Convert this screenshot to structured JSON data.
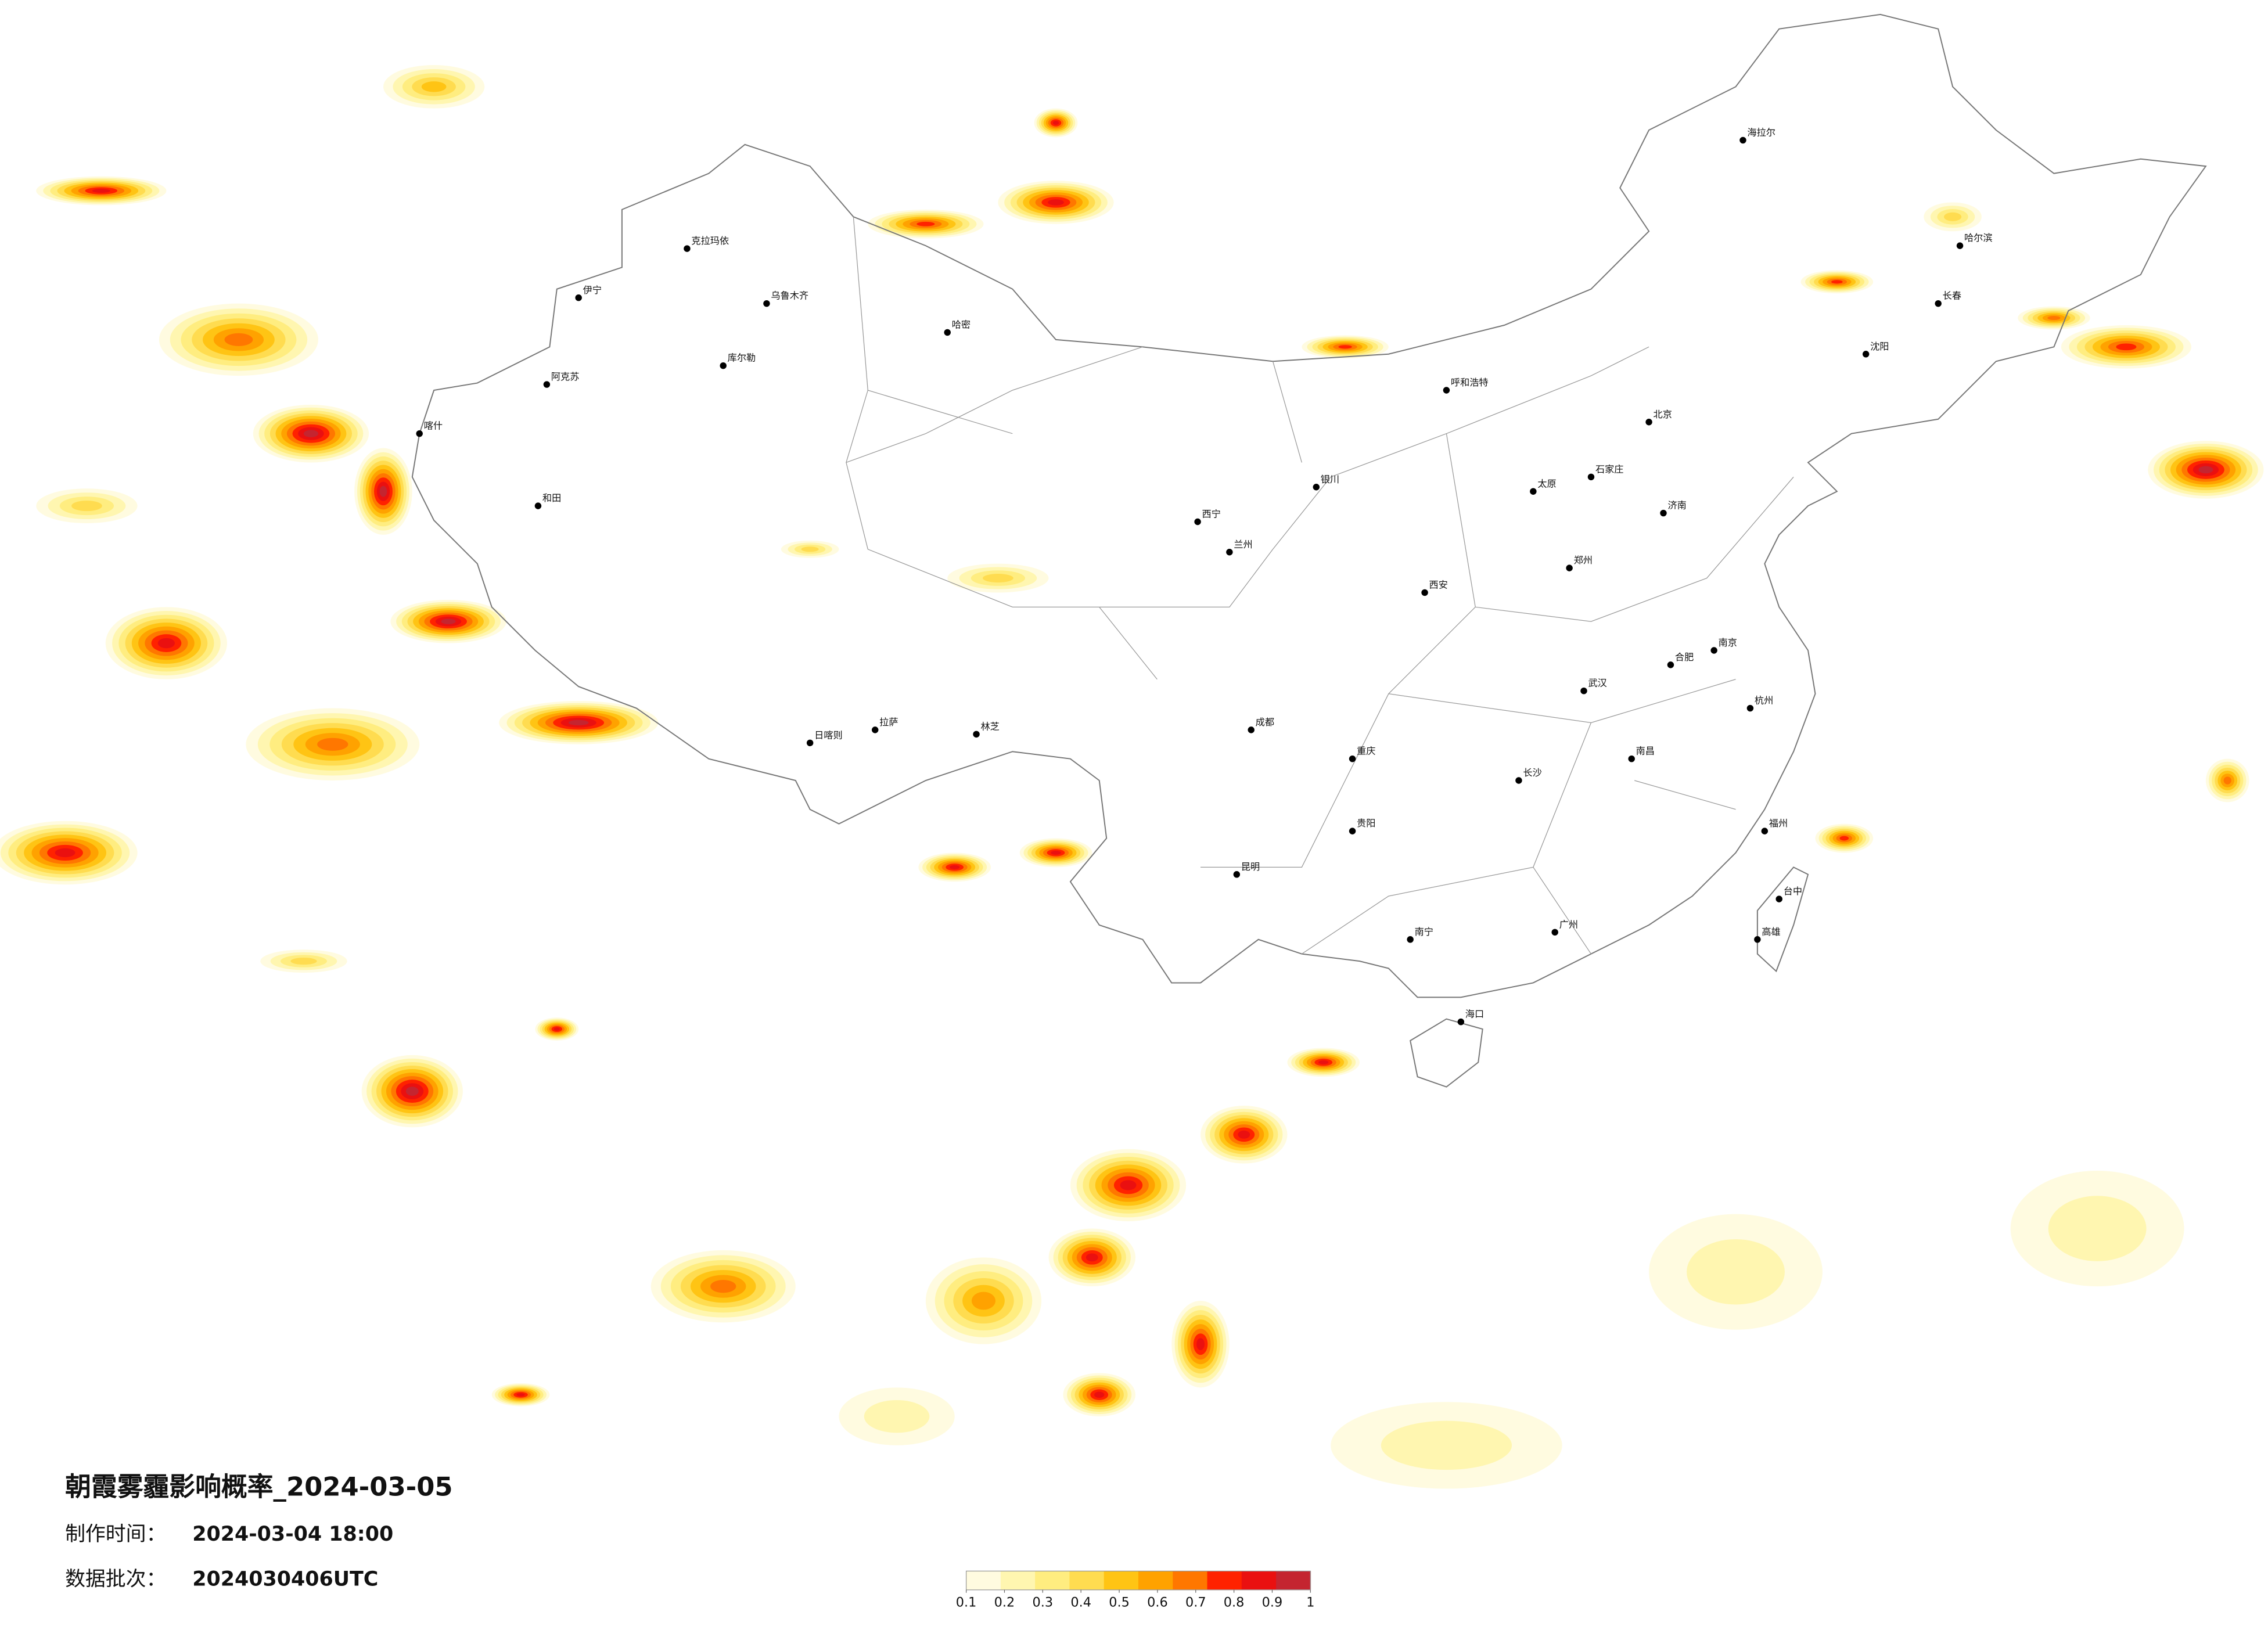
{
  "title": "朝霞雾霾影响概率_2024-03-05",
  "issue_time": {
    "label": "制作时间：",
    "value": "2024-03-04 18:00"
  },
  "data_batch": {
    "label": "数据批次：",
    "value": "2024030406UTC"
  },
  "legend": {
    "colors": [
      "#fffbe0",
      "#fff6b0",
      "#ffed80",
      "#ffdc50",
      "#ffc414",
      "#ffa200",
      "#ff7700",
      "#ff2200",
      "#ea1010",
      "#c42530"
    ],
    "ticks": [
      0.1,
      0.2,
      0.3,
      0.4,
      0.5,
      0.6,
      0.7,
      0.8,
      0.9,
      1
    ]
  },
  "cities": [
    "乌鲁木齐",
    "克拉玛依",
    "伊宁",
    "阿克苏",
    "喀什",
    "和田",
    "库尔勒",
    "哈密",
    "拉萨",
    "日喀则",
    "林芝",
    "西宁",
    "兰州",
    "银川",
    "呼和浩特",
    "太原",
    "石家庄",
    "济南",
    "郑州",
    "西安",
    "成都",
    "重庆",
    "贵阳",
    "昆明",
    "南宁",
    "广州",
    "长沙",
    "武汉",
    "南昌",
    "福州",
    "杭州",
    "南京",
    "合肥",
    "沈阳",
    "长春",
    "哈尔滨",
    "海口",
    "台中",
    "高雄",
    "海拉尔",
    "北京"
  ]
}
